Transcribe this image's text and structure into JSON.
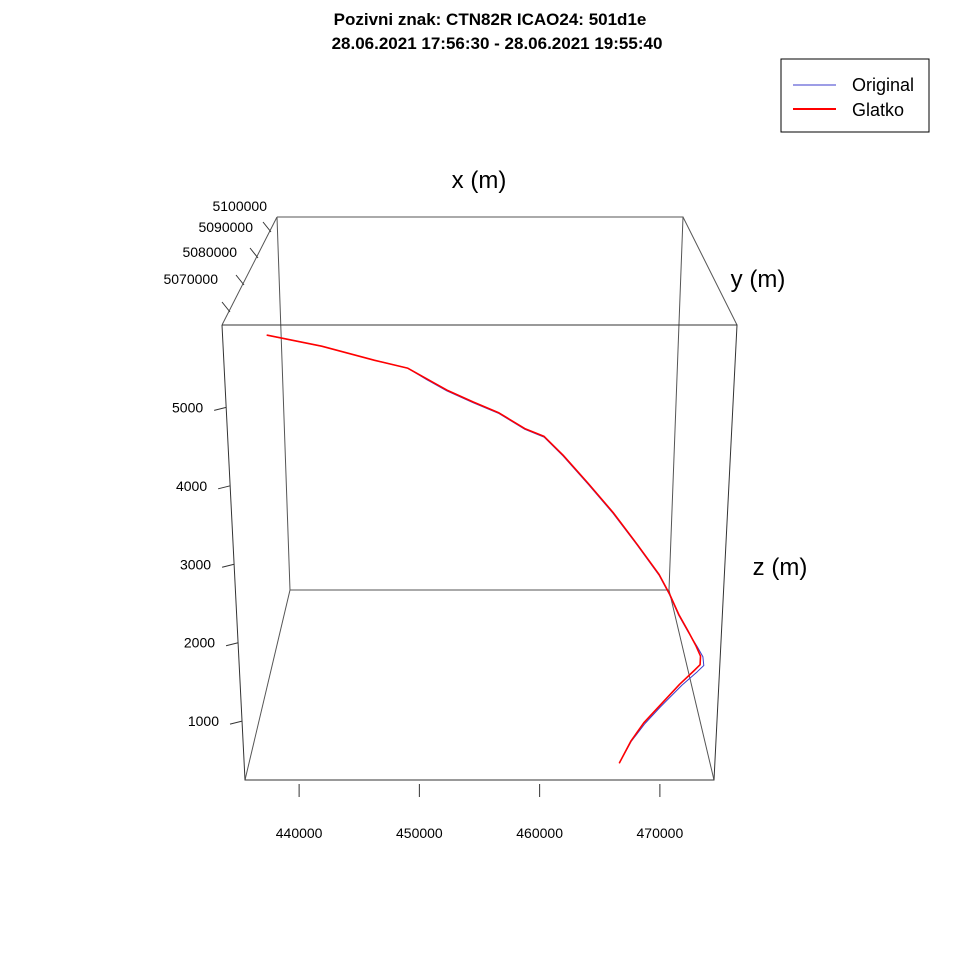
{
  "chart_data": {
    "type": "line",
    "title": "Pozivni znak: CTN82R    ICAO24: 501d1e",
    "subtitle": "28.06.2021 17:56:30 - 28.06.2021 19:55:40",
    "xlabel": "x (m)",
    "ylabel": "y (m)",
    "zlabel": "z (m)",
    "x_ticks": [
      "440000",
      "450000",
      "460000",
      "470000"
    ],
    "y_ticks": [
      "5100000",
      "5090000",
      "5080000",
      "5070000"
    ],
    "z_ticks": [
      "5000",
      "4000",
      "3000",
      "2000",
      "1000"
    ],
    "xlim": [
      435500,
      474500
    ],
    "zlim": [
      250,
      6050
    ],
    "legend": {
      "position": "top-right"
    },
    "series": [
      {
        "name": "Original",
        "color": "#3b3bcc",
        "x": [
          438900,
          443000,
          447000,
          449500,
          451000,
          452500,
          454500,
          456500,
          458500,
          460000,
          461500,
          463500,
          465500,
          467500,
          469300,
          470200,
          471000,
          471800,
          472600,
          473100,
          473200,
          472700,
          471500,
          469800,
          468600,
          467500,
          466600
        ],
        "z": [
          5920,
          5780,
          5600,
          5500,
          5350,
          5210,
          5060,
          4920,
          4720,
          4620,
          4380,
          4020,
          3650,
          3240,
          2860,
          2610,
          2350,
          2140,
          1950,
          1820,
          1710,
          1630,
          1460,
          1180,
          970,
          740,
          470
        ]
      },
      {
        "name": "Glatko",
        "color": "#ff0000",
        "x": [
          438900,
          443000,
          447000,
          449500,
          451000,
          452500,
          454500,
          456500,
          458500,
          460000,
          461500,
          463500,
          465500,
          467500,
          469300,
          470200,
          471000,
          471800,
          472500,
          472900,
          472900,
          472400,
          471300,
          469700,
          468500,
          467500,
          466600
        ],
        "z": [
          5920,
          5780,
          5600,
          5500,
          5360,
          5220,
          5070,
          4930,
          4730,
          4630,
          4390,
          4030,
          3660,
          3250,
          2870,
          2620,
          2360,
          2150,
          1960,
          1830,
          1720,
          1640,
          1470,
          1190,
          980,
          750,
          470
        ]
      }
    ]
  }
}
